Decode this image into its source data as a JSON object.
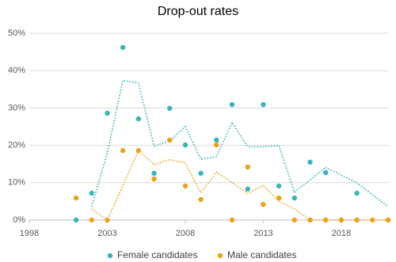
{
  "chart_data": {
    "type": "scatter",
    "title": "Drop-out rates",
    "series": [
      {
        "name": "Female candidates",
        "color": "#3bb3b8",
        "x": [
          2001,
          2002,
          2003,
          2004,
          2005,
          2006,
          2007,
          2008,
          2009,
          2010,
          2011,
          2012,
          2013,
          2014,
          2015,
          2016,
          2017,
          2019,
          2021
        ],
        "values": [
          0,
          7.2,
          28.6,
          46.2,
          27.1,
          12.5,
          29.9,
          20.1,
          12.5,
          21.4,
          30.9,
          8.3,
          30.9,
          9.1,
          5.9,
          15.5,
          12.7,
          7.2,
          0
        ]
      },
      {
        "name": "Male candidates",
        "color": "#eba21b",
        "x": [
          2001,
          2002,
          2003,
          2004,
          2005,
          2006,
          2007,
          2008,
          2009,
          2010,
          2011,
          2012,
          2013,
          2014,
          2015,
          2016,
          2017,
          2018,
          2019,
          2020,
          2021
        ],
        "values": [
          5.9,
          0,
          0,
          18.6,
          18.6,
          11.0,
          21.4,
          9.1,
          5.5,
          20.1,
          0,
          14.2,
          4.2,
          5.9,
          0,
          0,
          0,
          0,
          0,
          0,
          0
        ]
      }
    ],
    "trendline": {
      "type": "moving_average",
      "period": 2,
      "style": "dotted"
    },
    "xlim": [
      1998,
      2021
    ],
    "xticks": [
      1998,
      2003,
      2008,
      2013,
      2018
    ],
    "ylim": [
      0,
      50
    ],
    "yticks": [
      {
        "value": 0,
        "label": "0%"
      },
      {
        "value": 10,
        "label": "10%"
      },
      {
        "value": 20,
        "label": "20%"
      },
      {
        "value": 30,
        "label": "30%"
      },
      {
        "value": 40,
        "label": "40%"
      },
      {
        "value": 50,
        "label": "50%"
      }
    ],
    "grid": true,
    "legend": "bottom"
  }
}
